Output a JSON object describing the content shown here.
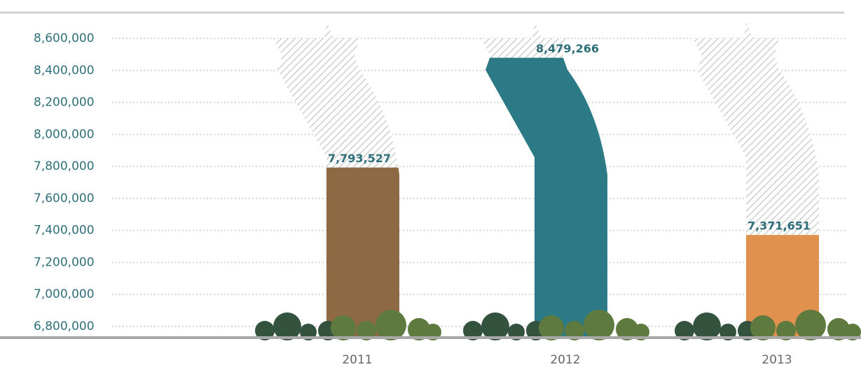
{
  "chart_data": {
    "type": "tree-bar",
    "categories": [
      "2011",
      "2012",
      "2013"
    ],
    "values": [
      7793527,
      8479266,
      7371651
    ],
    "value_labels": [
      "7,793,527",
      "8,479,266",
      "7,371,651"
    ],
    "colors": [
      "#8d6a44",
      "#2b7a85",
      "#e0914d"
    ],
    "ylim": [
      6800000,
      8600000
    ],
    "yticks": [
      {
        "value": 6800000,
        "label": "6,800,000"
      },
      {
        "value": 7000000,
        "label": "7,000,000"
      },
      {
        "value": 7200000,
        "label": "7,200,000"
      },
      {
        "value": 7400000,
        "label": "7,400,000"
      },
      {
        "value": 7600000,
        "label": "7,600,000"
      },
      {
        "value": 7800000,
        "label": "7,800,000"
      },
      {
        "value": 8000000,
        "label": "8,000,000"
      },
      {
        "value": 8200000,
        "label": "8,200,000"
      },
      {
        "value": 8400000,
        "label": "8,400,000"
      },
      {
        "value": 8600000,
        "label": "8,600,000"
      }
    ],
    "grid": true
  }
}
